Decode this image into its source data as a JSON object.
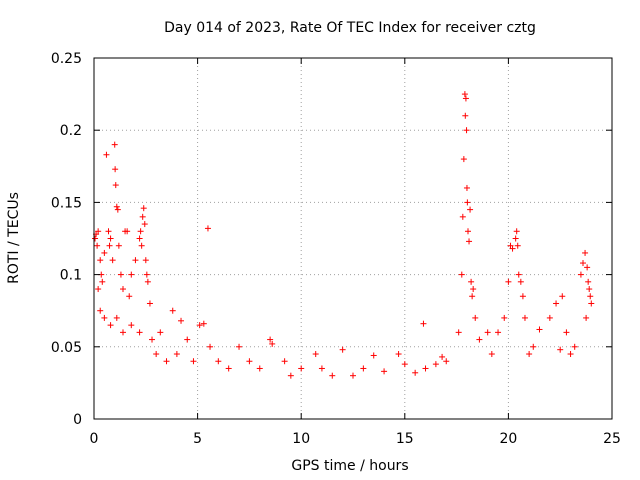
{
  "chart_data": {
    "type": "scatter",
    "title": "Day 014 of 2023, Rate Of TEC Index for receiver cztg",
    "xlabel": "GPS time / hours",
    "ylabel": "ROTI / TECUs",
    "xlim": [
      0,
      25
    ],
    "ylim": [
      0,
      0.25
    ],
    "xticks": [
      0,
      5,
      10,
      15,
      20,
      25
    ],
    "yticks": [
      0,
      0.05,
      0.1,
      0.15,
      0.2,
      0.25
    ],
    "xtick_labels": [
      "0",
      "5",
      "10",
      "15",
      "20",
      "25"
    ],
    "ytick_labels": [
      "0",
      "0.05",
      "0.1",
      "0.15",
      "0.2",
      "0.25"
    ],
    "grid": true,
    "marker": "+",
    "color": "#ff0000",
    "series": [
      {
        "points": [
          [
            0.05,
            0.125
          ],
          [
            0.1,
            0.128
          ],
          [
            0.15,
            0.12
          ],
          [
            0.2,
            0.13
          ],
          [
            0.3,
            0.11
          ],
          [
            0.35,
            0.1
          ],
          [
            0.4,
            0.095
          ],
          [
            0.5,
            0.115
          ],
          [
            0.6,
            0.183
          ],
          [
            0.7,
            0.13
          ],
          [
            0.75,
            0.12
          ],
          [
            0.8,
            0.125
          ],
          [
            0.9,
            0.11
          ],
          [
            1.0,
            0.19
          ],
          [
            1.02,
            0.173
          ],
          [
            1.05,
            0.162
          ],
          [
            1.1,
            0.147
          ],
          [
            1.15,
            0.145
          ],
          [
            1.2,
            0.12
          ],
          [
            1.3,
            0.1
          ],
          [
            1.4,
            0.09
          ],
          [
            1.5,
            0.13
          ],
          [
            1.6,
            0.13
          ],
          [
            1.7,
            0.085
          ],
          [
            1.8,
            0.1
          ],
          [
            2.0,
            0.11
          ],
          [
            2.2,
            0.125
          ],
          [
            2.25,
            0.13
          ],
          [
            2.3,
            0.12
          ],
          [
            2.35,
            0.14
          ],
          [
            2.4,
            0.146
          ],
          [
            2.45,
            0.135
          ],
          [
            2.5,
            0.11
          ],
          [
            2.55,
            0.1
          ],
          [
            2.6,
            0.095
          ],
          [
            2.7,
            0.08
          ],
          [
            0.2,
            0.09
          ],
          [
            0.3,
            0.075
          ],
          [
            0.5,
            0.07
          ],
          [
            0.8,
            0.065
          ],
          [
            1.1,
            0.07
          ],
          [
            1.4,
            0.06
          ],
          [
            1.8,
            0.065
          ],
          [
            2.2,
            0.06
          ],
          [
            2.8,
            0.055
          ],
          [
            3.2,
            0.06
          ],
          [
            3.8,
            0.075
          ],
          [
            4.2,
            0.068
          ],
          [
            4.5,
            0.055
          ],
          [
            5.1,
            0.065
          ],
          [
            5.3,
            0.066
          ],
          [
            5.5,
            0.132
          ],
          [
            5.6,
            0.05
          ],
          [
            7.0,
            0.05
          ],
          [
            8.5,
            0.055
          ],
          [
            8.6,
            0.052
          ],
          [
            9.2,
            0.04
          ],
          [
            10.7,
            0.045
          ],
          [
            12.0,
            0.048
          ],
          [
            13.5,
            0.044
          ],
          [
            14.7,
            0.045
          ],
          [
            15.9,
            0.066
          ],
          [
            16.8,
            0.043
          ],
          [
            17.6,
            0.06
          ],
          [
            17.75,
            0.1
          ],
          [
            17.8,
            0.14
          ],
          [
            17.85,
            0.18
          ],
          [
            17.9,
            0.225
          ],
          [
            17.95,
            0.222
          ],
          [
            17.92,
            0.21
          ],
          [
            17.98,
            0.2
          ],
          [
            18.0,
            0.16
          ],
          [
            18.02,
            0.15
          ],
          [
            18.05,
            0.13
          ],
          [
            18.1,
            0.123
          ],
          [
            18.15,
            0.145
          ],
          [
            18.2,
            0.095
          ],
          [
            18.25,
            0.085
          ],
          [
            18.3,
            0.09
          ],
          [
            18.4,
            0.07
          ],
          [
            18.6,
            0.055
          ],
          [
            19.0,
            0.06
          ],
          [
            19.5,
            0.06
          ],
          [
            19.8,
            0.07
          ],
          [
            20.0,
            0.095
          ],
          [
            20.1,
            0.12
          ],
          [
            20.2,
            0.118
          ],
          [
            20.35,
            0.125
          ],
          [
            20.4,
            0.13
          ],
          [
            20.45,
            0.12
          ],
          [
            20.5,
            0.1
          ],
          [
            20.6,
            0.095
          ],
          [
            20.7,
            0.085
          ],
          [
            20.8,
            0.07
          ],
          [
            21.2,
            0.05
          ],
          [
            21.5,
            0.062
          ],
          [
            22.0,
            0.07
          ],
          [
            22.3,
            0.08
          ],
          [
            22.6,
            0.085
          ],
          [
            22.8,
            0.06
          ],
          [
            23.2,
            0.05
          ],
          [
            23.5,
            0.1
          ],
          [
            23.6,
            0.108
          ],
          [
            23.7,
            0.115
          ],
          [
            23.8,
            0.105
          ],
          [
            23.85,
            0.095
          ],
          [
            23.9,
            0.09
          ],
          [
            23.95,
            0.085
          ],
          [
            24.0,
            0.08
          ],
          [
            23.75,
            0.07
          ],
          [
            3.0,
            0.045
          ],
          [
            3.5,
            0.04
          ],
          [
            4.0,
            0.045
          ],
          [
            4.8,
            0.04
          ],
          [
            6.0,
            0.04
          ],
          [
            6.5,
            0.035
          ],
          [
            7.5,
            0.04
          ],
          [
            8.0,
            0.035
          ],
          [
            9.5,
            0.03
          ],
          [
            10.0,
            0.035
          ],
          [
            11.0,
            0.035
          ],
          [
            11.5,
            0.03
          ],
          [
            12.5,
            0.03
          ],
          [
            13.0,
            0.035
          ],
          [
            14.0,
            0.033
          ],
          [
            15.0,
            0.038
          ],
          [
            15.5,
            0.032
          ],
          [
            16.0,
            0.035
          ],
          [
            16.5,
            0.038
          ],
          [
            17.0,
            0.04
          ],
          [
            19.2,
            0.045
          ],
          [
            21.0,
            0.045
          ],
          [
            22.5,
            0.048
          ],
          [
            23.0,
            0.045
          ]
        ]
      }
    ]
  }
}
